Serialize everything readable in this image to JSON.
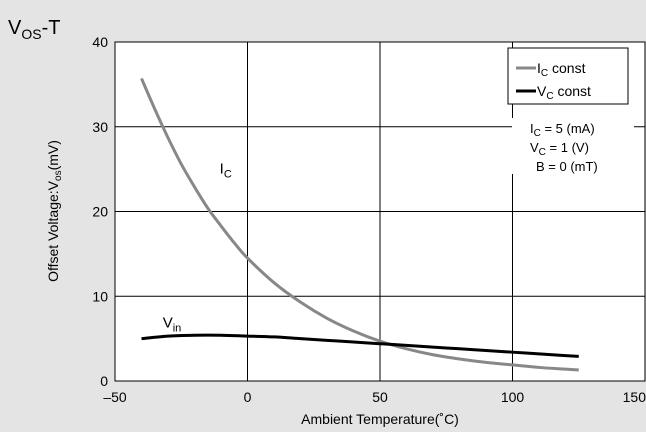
{
  "chart_data": {
    "type": "line",
    "title": {
      "main": "V",
      "sub": "OS",
      "tail": "-T"
    },
    "xlabel": "Ambient Temperature(˚C)",
    "ylabel": "Offset Voltage:V",
    "ylabel_sub": "os",
    "ylabel_unit": "(mV)",
    "xlim": [
      -50,
      150
    ],
    "ylim": [
      0,
      40
    ],
    "xticks": [
      -50,
      0,
      50,
      100,
      150
    ],
    "yticks": [
      0,
      10,
      20,
      30,
      40
    ],
    "xtick_labels": [
      "–50",
      "0",
      "50",
      "100",
      "150"
    ],
    "ytick_labels": [
      "0",
      "10",
      "20",
      "30",
      "40"
    ],
    "grid": true,
    "legend_position": "top-right",
    "series": [
      {
        "name": "I",
        "name_sub": "C",
        "name_tail": " const",
        "color": "#888888",
        "x": [
          -40,
          -35,
          -30,
          -25,
          -20,
          -15,
          -10,
          -5,
          0,
          10,
          20,
          30,
          40,
          50,
          60,
          70,
          80,
          90,
          100,
          110,
          120,
          125
        ],
        "y": [
          35.7,
          32.1,
          28.7,
          25.6,
          22.9,
          20.4,
          18.3,
          16.3,
          14.5,
          11.6,
          9.3,
          7.4,
          5.9,
          4.7,
          3.8,
          3.1,
          2.6,
          2.2,
          1.9,
          1.6,
          1.4,
          1.3
        ]
      },
      {
        "name": "V",
        "name_sub": "C",
        "name_tail": " const",
        "color": "#000000",
        "x": [
          -40,
          -30,
          -20,
          -10,
          0,
          10,
          20,
          30,
          40,
          50,
          60,
          70,
          80,
          90,
          100,
          110,
          120,
          125
        ],
        "y": [
          5.0,
          5.3,
          5.4,
          5.4,
          5.3,
          5.2,
          5.0,
          4.8,
          4.6,
          4.4,
          4.2,
          4.0,
          3.8,
          3.6,
          3.4,
          3.2,
          3.0,
          2.9
        ]
      }
    ],
    "conditions": [
      {
        "lhs": "I",
        "sub": "C",
        "rhs": " = 5 (mA)"
      },
      {
        "lhs": "V",
        "sub": "C",
        "rhs": " = 1 (V)"
      },
      {
        "lhs": "B",
        "sub": "",
        "rhs": " = 0 (mT)"
      }
    ],
    "annotations": [
      {
        "main": "I",
        "sub": "C",
        "x": -10.5,
        "y": 24.5
      },
      {
        "main": "V",
        "sub": "in",
        "x": -32,
        "y": 6.3
      }
    ]
  }
}
